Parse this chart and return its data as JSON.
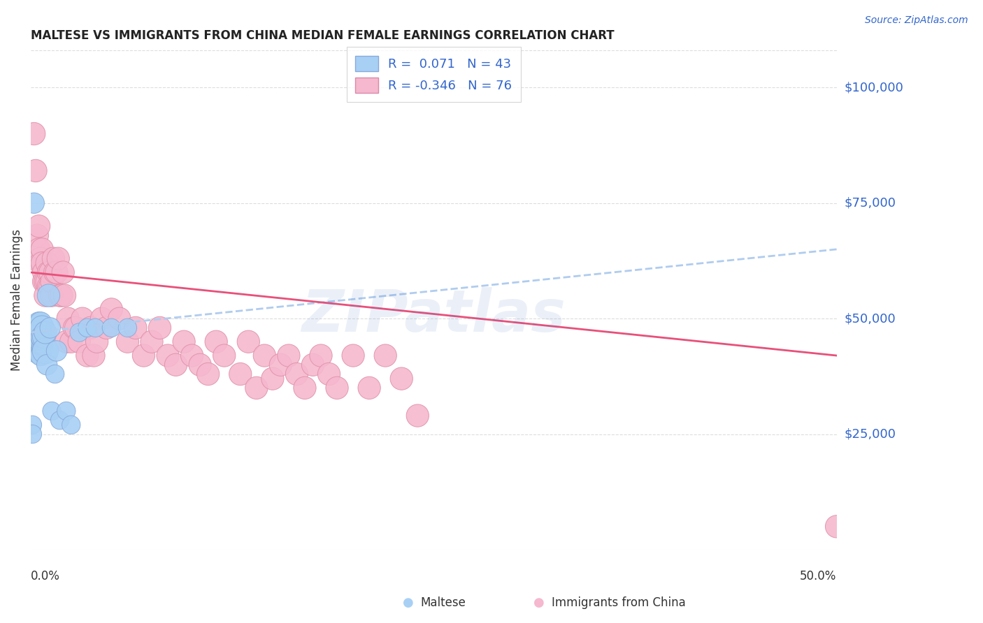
{
  "title": "MALTESE VS IMMIGRANTS FROM CHINA MEDIAN FEMALE EARNINGS CORRELATION CHART",
  "source": "Source: ZipAtlas.com",
  "ylabel": "Median Female Earnings",
  "ytick_labels": [
    "$25,000",
    "$50,000",
    "$75,000",
    "$100,000"
  ],
  "ytick_values": [
    25000,
    50000,
    75000,
    100000
  ],
  "ylim": [
    0,
    108000
  ],
  "xlim": [
    0.0,
    0.5
  ],
  "watermark": "ZIPatlas",
  "blue_color": "#a8d0f5",
  "pink_color": "#f5b8ce",
  "trendline_blue_color": "#b0ccee",
  "trendline_pink_color": "#e8507a",
  "background_color": "#ffffff",
  "legend_label1": "R =  0.071   N = 43",
  "legend_label2": "R = -0.346   N = 76",
  "maltese_x": [
    0.001,
    0.001,
    0.002,
    0.003,
    0.003,
    0.003,
    0.003,
    0.004,
    0.004,
    0.004,
    0.005,
    0.005,
    0.005,
    0.005,
    0.005,
    0.005,
    0.006,
    0.006,
    0.006,
    0.006,
    0.007,
    0.007,
    0.007,
    0.007,
    0.007,
    0.008,
    0.008,
    0.009,
    0.009,
    0.01,
    0.011,
    0.012,
    0.013,
    0.015,
    0.016,
    0.018,
    0.022,
    0.025,
    0.03,
    0.035,
    0.04,
    0.05,
    0.06
  ],
  "maltese_y": [
    27000,
    25000,
    75000,
    46000,
    48000,
    47000,
    44000,
    44000,
    46000,
    48000,
    44000,
    46000,
    47000,
    49000,
    43000,
    45000,
    42000,
    45000,
    47000,
    49000,
    44000,
    46000,
    48000,
    44000,
    46000,
    44000,
    46000,
    43000,
    47000,
    40000,
    55000,
    48000,
    30000,
    38000,
    43000,
    28000,
    30000,
    27000,
    47000,
    48000,
    48000,
    48000,
    48000
  ],
  "maltese_sizes": [
    40,
    40,
    50,
    70,
    60,
    60,
    60,
    50,
    60,
    70,
    90,
    80,
    70,
    60,
    80,
    60,
    50,
    60,
    70,
    60,
    50,
    60,
    70,
    40,
    60,
    40,
    60,
    80,
    60,
    50,
    60,
    50,
    40,
    40,
    50,
    40,
    40,
    40,
    40,
    40,
    40,
    40,
    40
  ],
  "china_x": [
    0.002,
    0.003,
    0.004,
    0.005,
    0.005,
    0.006,
    0.006,
    0.007,
    0.007,
    0.008,
    0.008,
    0.009,
    0.009,
    0.01,
    0.01,
    0.011,
    0.011,
    0.012,
    0.012,
    0.013,
    0.013,
    0.014,
    0.015,
    0.016,
    0.017,
    0.018,
    0.019,
    0.02,
    0.021,
    0.022,
    0.023,
    0.025,
    0.027,
    0.028,
    0.03,
    0.032,
    0.035,
    0.037,
    0.039,
    0.041,
    0.044,
    0.047,
    0.05,
    0.055,
    0.06,
    0.065,
    0.07,
    0.075,
    0.08,
    0.085,
    0.09,
    0.095,
    0.1,
    0.105,
    0.11,
    0.115,
    0.12,
    0.13,
    0.135,
    0.14,
    0.145,
    0.15,
    0.155,
    0.16,
    0.165,
    0.17,
    0.175,
    0.18,
    0.185,
    0.19,
    0.2,
    0.21,
    0.22,
    0.23,
    0.24,
    0.5
  ],
  "china_y": [
    90000,
    82000,
    68000,
    65000,
    70000,
    63000,
    62000,
    65000,
    62000,
    60000,
    58000,
    58000,
    55000,
    62000,
    58000,
    60000,
    57000,
    57000,
    60000,
    55000,
    58000,
    63000,
    60000,
    60000,
    63000,
    55000,
    55000,
    60000,
    55000,
    45000,
    50000,
    45000,
    48000,
    48000,
    45000,
    50000,
    42000,
    48000,
    42000,
    45000,
    50000,
    48000,
    52000,
    50000,
    45000,
    48000,
    42000,
    45000,
    48000,
    42000,
    40000,
    45000,
    42000,
    40000,
    38000,
    45000,
    42000,
    38000,
    45000,
    35000,
    42000,
    37000,
    40000,
    42000,
    38000,
    35000,
    40000,
    42000,
    38000,
    35000,
    42000,
    35000,
    42000,
    37000,
    29000,
    5000
  ],
  "china_sizes": [
    60,
    60,
    60,
    60,
    60,
    60,
    60,
    60,
    60,
    60,
    60,
    60,
    60,
    60,
    60,
    60,
    60,
    60,
    60,
    60,
    60,
    60,
    60,
    60,
    60,
    60,
    60,
    60,
    60,
    60,
    60,
    60,
    60,
    60,
    60,
    60,
    60,
    60,
    60,
    60,
    60,
    60,
    60,
    60,
    60,
    60,
    60,
    60,
    60,
    60,
    60,
    60,
    60,
    60,
    60,
    60,
    60,
    60,
    60,
    60,
    60,
    60,
    60,
    60,
    60,
    60,
    60,
    60,
    60,
    60,
    60,
    60,
    60,
    60,
    60,
    60
  ]
}
